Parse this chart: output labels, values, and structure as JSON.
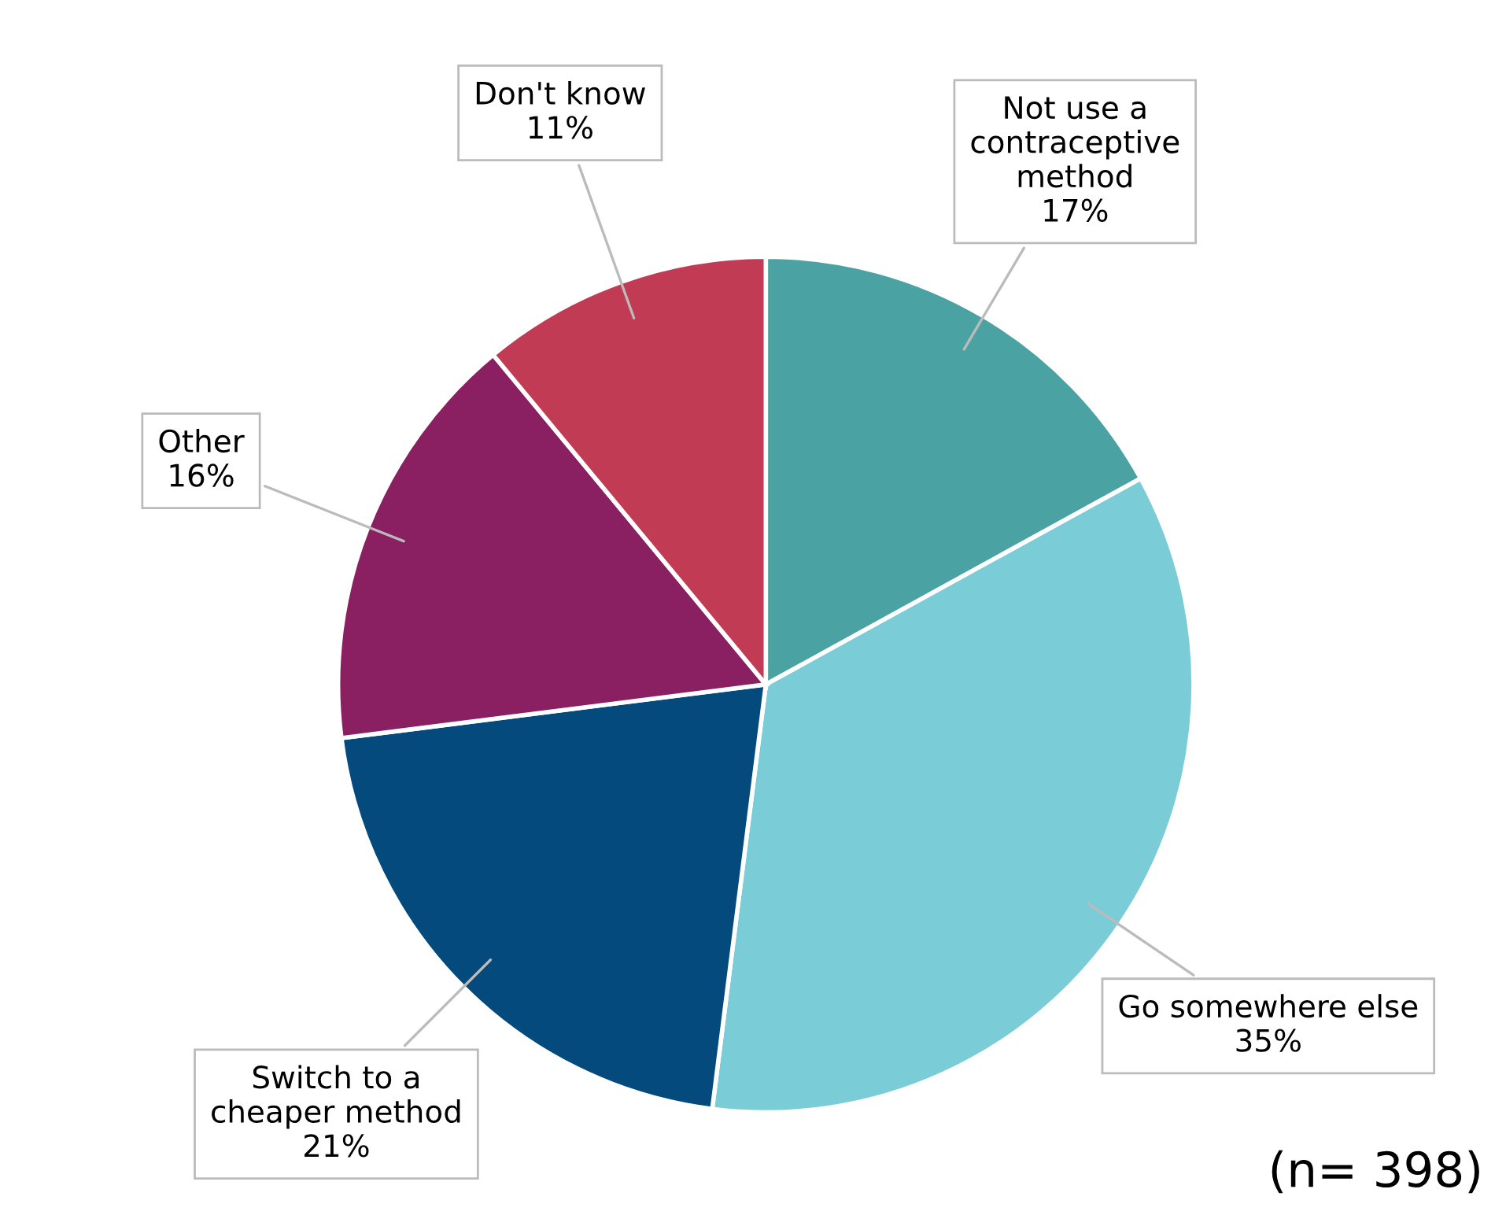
{
  "chart_data": {
    "type": "pie",
    "categories": [
      "Not use a contraceptive method",
      "Go somewhere else",
      "Switch to a cheaper method",
      "Other",
      "Don't know"
    ],
    "values": [
      17,
      35,
      21,
      16,
      11
    ],
    "colors": [
      "#4aa3a2",
      "#7accd6",
      "#054a7c",
      "#8a1f62",
      "#c23b54"
    ],
    "value_labels": [
      "17%",
      "35%",
      "21%",
      "16%",
      "11%"
    ],
    "annotations": [
      "(n= 398)"
    ]
  }
}
